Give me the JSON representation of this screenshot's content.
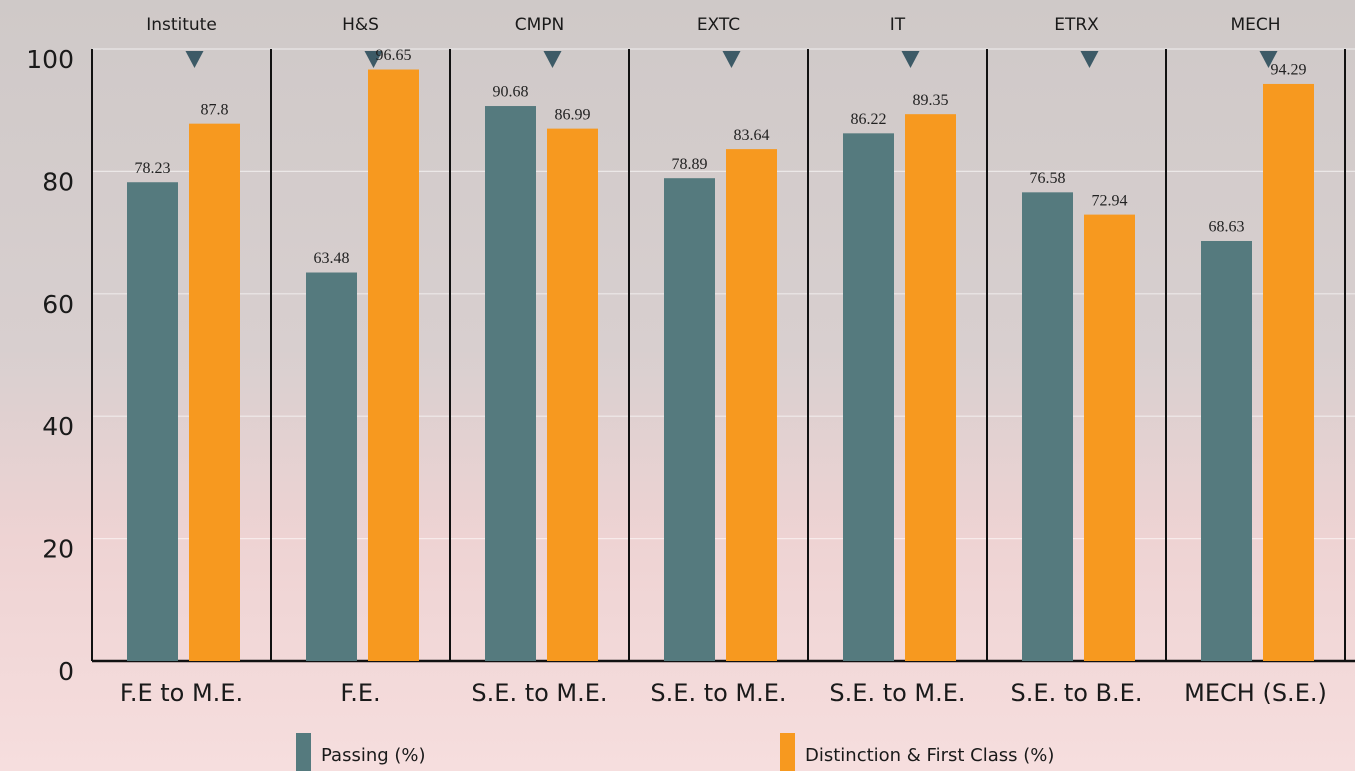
{
  "chart_data": {
    "type": "bar",
    "groups": [
      "Institute",
      "H&S",
      "CMPN",
      "EXTC",
      "IT",
      "ETRX",
      "MECH"
    ],
    "categories": [
      "F.E to M.E.",
      "F.E.",
      "S.E. to M.E.",
      "S.E. to M.E.",
      "S.E. to M.E.",
      "S.E. to B.E.",
      "MECH (S.E.)"
    ],
    "series": [
      {
        "name": "Passing (%)",
        "color": "#557a7e",
        "values": [
          78.23,
          63.48,
          90.68,
          78.89,
          86.22,
          76.58,
          68.63
        ]
      },
      {
        "name": "Distinction & First Class (%)",
        "color": "#f7991f",
        "values": [
          87.8,
          96.65,
          86.99,
          83.64,
          89.35,
          72.94,
          94.29
        ]
      }
    ],
    "ylim": [
      0,
      100
    ],
    "yticks": [
      0,
      20,
      40,
      60,
      80,
      100
    ],
    "grid": true
  }
}
